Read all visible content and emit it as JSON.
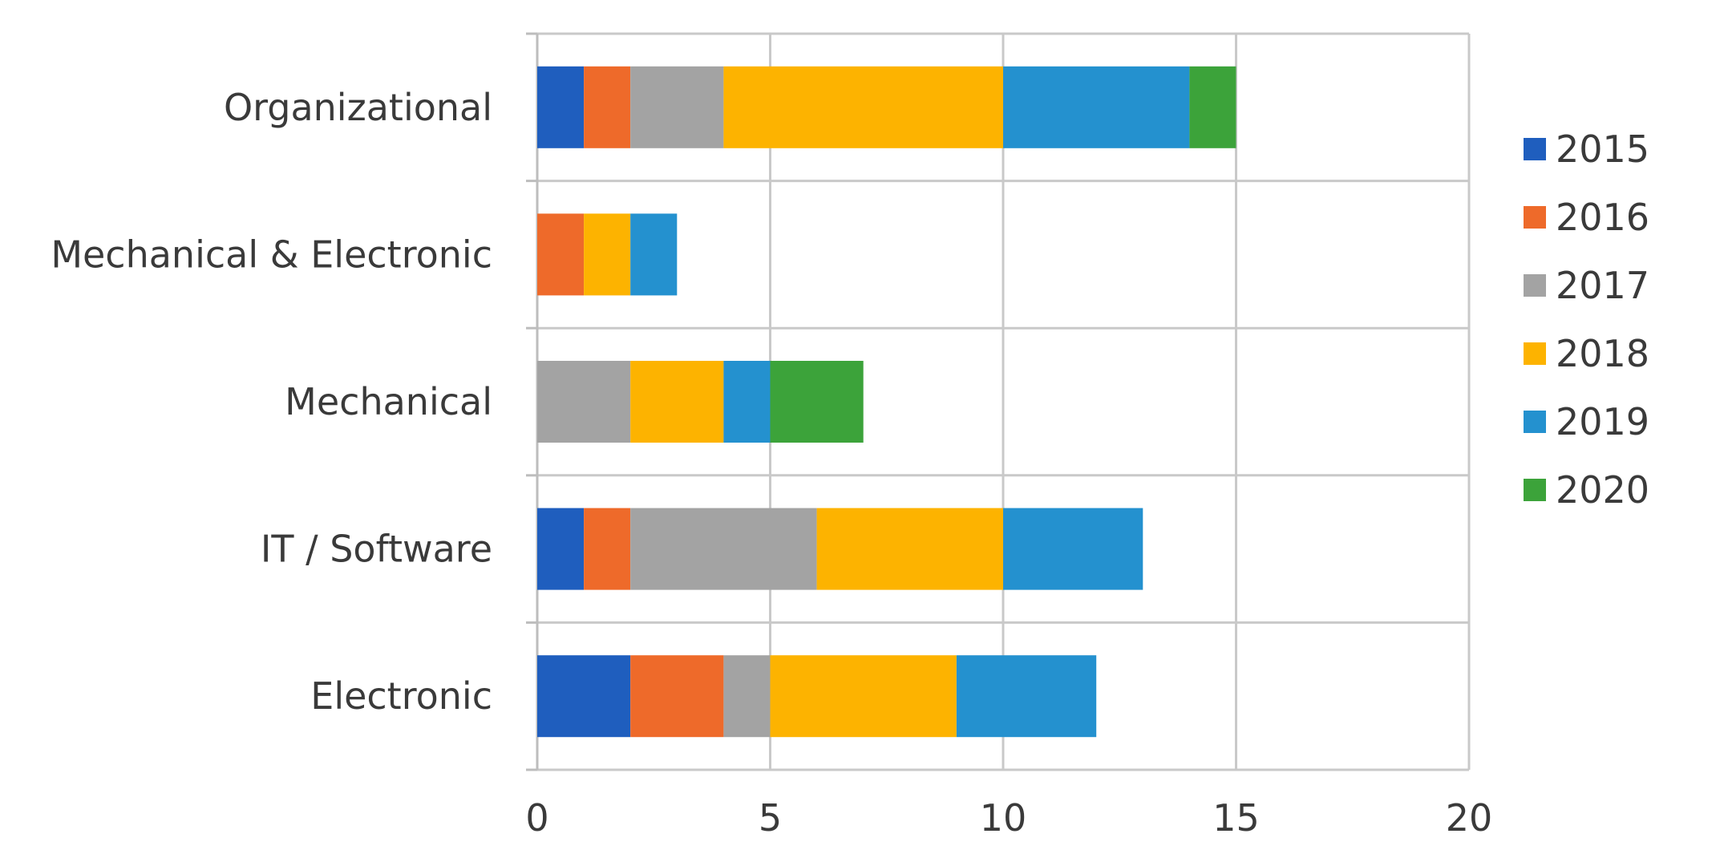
{
  "chart_data": {
    "type": "bar",
    "orientation": "horizontal",
    "stacked": true,
    "title": "",
    "xlabel": "",
    "ylabel": "",
    "xlim": [
      0,
      20
    ],
    "x_ticks": [
      0,
      5,
      10,
      15,
      20
    ],
    "grid": true,
    "legend_position": "right",
    "categories": [
      "Organizational",
      "Mechanical & Electronic",
      "Mechanical",
      "IT / Software",
      "Electronic"
    ],
    "series": [
      {
        "name": "2015",
        "color": "#1f5ebe",
        "values": [
          1,
          0,
          0,
          1,
          2
        ]
      },
      {
        "name": "2016",
        "color": "#ee6a2a",
        "values": [
          1,
          1,
          0,
          1,
          2
        ]
      },
      {
        "name": "2017",
        "color": "#a3a3a3",
        "values": [
          2,
          0,
          2,
          4,
          1
        ]
      },
      {
        "name": "2018",
        "color": "#fdb300",
        "values": [
          6,
          1,
          2,
          4,
          4
        ]
      },
      {
        "name": "2019",
        "color": "#2491cf",
        "values": [
          4,
          1,
          1,
          3,
          3
        ]
      },
      {
        "name": "2020",
        "color": "#3ca33a",
        "values": [
          1,
          0,
          2,
          0,
          0
        ]
      }
    ]
  }
}
